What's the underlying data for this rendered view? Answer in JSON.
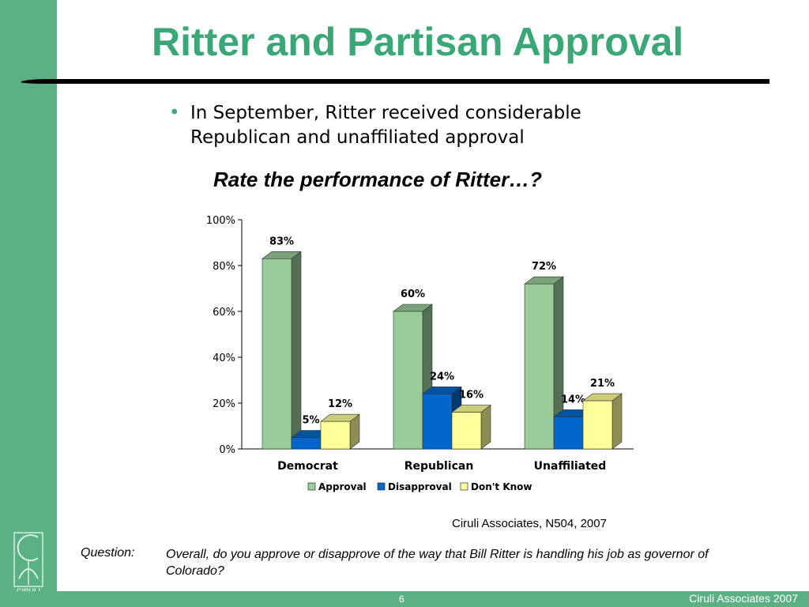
{
  "slide": {
    "title": "Ritter and Partisan Approval",
    "bullet": "In September, Ritter received considerable Republican and unaffiliated approval",
    "subtitle": "Rate the performance of Ritter…?",
    "source": "Ciruli Associates, N504, 2007",
    "question_label": "Question:",
    "question_text": "Overall, do you approve or disapprove of the way that Bill Ritter is handling his job as governor of Colorado?",
    "page_number": "6",
    "footer_org": "Ciruli Associates 2007",
    "logo_text": "CIRULI",
    "logo_subtext": "ASSOCIATES"
  },
  "colors": {
    "band": "#5cb184",
    "title": "#3aa876",
    "approval": "#99cc99",
    "disapproval": "#0066cc",
    "dont_know": "#ffff99"
  },
  "chart_data": {
    "type": "bar",
    "categories": [
      "Democrat",
      "Republican",
      "Unaffiliated"
    ],
    "series": [
      {
        "name": "Approval",
        "values": [
          83,
          60,
          72
        ],
        "labels": [
          "83%",
          "60%",
          "72%"
        ]
      },
      {
        "name": "Disapproval",
        "values": [
          5,
          24,
          14
        ],
        "labels": [
          "5%",
          "24%",
          "14%"
        ]
      },
      {
        "name": "Don't Know",
        "values": [
          12,
          16,
          21
        ],
        "labels": [
          "12%",
          "16%",
          "21%"
        ]
      }
    ],
    "y_ticks": [
      "0%",
      "20%",
      "40%",
      "60%",
      "80%",
      "100%"
    ],
    "ylim": [
      0,
      100
    ],
    "legend_position": "bottom",
    "grid": false,
    "style": "3d-clustered-column"
  }
}
